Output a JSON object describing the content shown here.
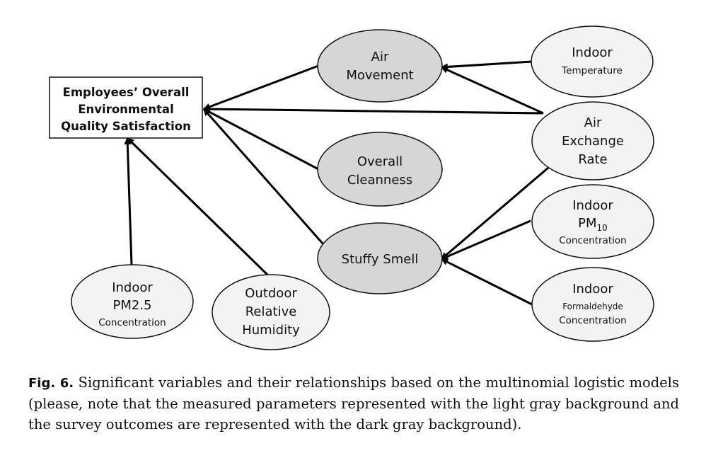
{
  "diagram": {
    "target": {
      "lines": [
        "Employees’ Overall",
        "Environmental",
        "Quality Satisfaction"
      ]
    },
    "nodes": {
      "air_movement": {
        "lines": [
          "Air",
          "Movement"
        ],
        "fill": "#d6d6d6"
      },
      "overall_cleanness": {
        "lines": [
          "Overall",
          "Cleanness"
        ],
        "fill": "#d6d6d6"
      },
      "stuffy_smell": {
        "lines": [
          "Stuffy Smell"
        ],
        "fill": "#d6d6d6"
      },
      "indoor_temperature": {
        "line1": "Indoor",
        "line2": "Temperature",
        "fill": "#f3f3f3"
      },
      "air_exchange_rate": {
        "lines": [
          "Air",
          "Exchange",
          "Rate"
        ],
        "fill": "#f3f3f3"
      },
      "indoor_pm10": {
        "line1": "Indoor",
        "line2_base": "PM",
        "line2_sub": "10",
        "line3": "Concentration",
        "fill": "#f3f3f3"
      },
      "indoor_formaldehyde": {
        "line1": "Indoor",
        "line2": "Formaldehyde",
        "line3": "Concentration",
        "fill": "#f3f3f3"
      },
      "indoor_pm25": {
        "line1": "Indoor",
        "line2": "PM2.5",
        "line3": "Concentration",
        "fill": "#f3f3f3"
      },
      "outdoor_humidity": {
        "lines": [
          "Outdoor",
          "Relative",
          "Humidity"
        ],
        "fill": "#f3f3f3"
      }
    }
  },
  "caption": {
    "label": "Fig. 6.",
    "text": "Significant variables and their relationships based on the multinomial logistic models (please, note that the measured parameters represented with the light gray background and the survey outcomes are represented with the dark gray background)."
  }
}
